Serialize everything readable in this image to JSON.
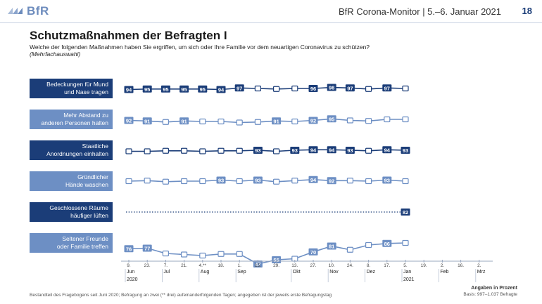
{
  "header": {
    "logo_text": "BfR",
    "title": "BfR Corona-Monitor | 5.–6. Januar 2021",
    "page_number": "18"
  },
  "chart_data": {
    "type": "line",
    "title": "Schutzmaßnahmen der Befragten I",
    "subtitle": "Welche der folgenden Maßnahmen haben Sie ergriffen, um sich oder Ihre Familie vor dem neuartigen Coronavirus zu schützen?",
    "note": "(Mehrfachauswahl)",
    "x_ticks": [
      {
        "day": "9.",
        "month": "Jun",
        "year": "2020"
      },
      {
        "day": "23.",
        "month": "",
        "year": ""
      },
      {
        "day": "7.",
        "month": "Jul",
        "year": ""
      },
      {
        "day": "21.",
        "month": "",
        "year": ""
      },
      {
        "day": "4.**",
        "month": "Aug",
        "year": ""
      },
      {
        "day": "18.",
        "month": "",
        "year": ""
      },
      {
        "day": "1.",
        "month": "Sep",
        "year": ""
      },
      {
        "day": "15.",
        "month": "",
        "year": ""
      },
      {
        "day": "29.",
        "month": "",
        "year": ""
      },
      {
        "day": "13.",
        "month": "Okt",
        "year": ""
      },
      {
        "day": "27.",
        "month": "",
        "year": ""
      },
      {
        "day": "10.",
        "month": "Nov",
        "year": ""
      },
      {
        "day": "24.",
        "month": "",
        "year": ""
      },
      {
        "day": "8.",
        "month": "Dez",
        "year": ""
      },
      {
        "day": "17.",
        "month": "",
        "year": ""
      },
      {
        "day": "5.",
        "month": "Jan",
        "year": "2021"
      },
      {
        "day": "19.",
        "month": "",
        "year": ""
      },
      {
        "day": "2.",
        "month": "Feb",
        "year": ""
      },
      {
        "day": "16.",
        "month": "",
        "year": ""
      },
      {
        "day": "2.",
        "month": "Mrz",
        "year": ""
      }
    ],
    "series": [
      {
        "name_lines": [
          "Bedeckungen für Mund",
          "und Nase tragen"
        ],
        "color": "#1b3d78",
        "values": [
          94,
          95,
          95,
          95,
          95,
          94,
          97,
          96,
          95,
          96,
          96,
          98,
          97,
          95,
          97,
          96
        ],
        "labeled": [
          true,
          true,
          true,
          true,
          true,
          true,
          true,
          false,
          false,
          false,
          true,
          true,
          true,
          false,
          true,
          false
        ]
      },
      {
        "name_lines": [
          "Mehr Abstand zu",
          "anderen Personen halten"
        ],
        "color": "#6d8fc4",
        "values": [
          92,
          91,
          89,
          91,
          90,
          90,
          88,
          89,
          91,
          90,
          92,
          95,
          92,
          91,
          94,
          94
        ],
        "labeled": [
          true,
          true,
          false,
          true,
          false,
          false,
          false,
          false,
          true,
          false,
          true,
          true,
          false,
          false,
          false,
          false
        ]
      },
      {
        "name_lines": [
          "Staatliche",
          "Anordnungen einhalten"
        ],
        "color": "#1b3d78",
        "values": [
          91,
          91,
          92,
          92,
          91,
          92,
          92,
          93,
          91,
          93,
          94,
          94,
          93,
          92,
          94,
          93
        ],
        "labeled": [
          false,
          false,
          false,
          false,
          false,
          false,
          false,
          true,
          false,
          true,
          true,
          true,
          true,
          false,
          true,
          true
        ]
      },
      {
        "name_lines": [
          "Gründlicher",
          "Hände waschen"
        ],
        "color": "#6d8fc4",
        "values": [
          91,
          92,
          90,
          91,
          91,
          93,
          91,
          93,
          90,
          92,
          94,
          92,
          92,
          91,
          93,
          91
        ],
        "labeled": [
          false,
          false,
          false,
          false,
          false,
          true,
          false,
          true,
          false,
          false,
          true,
          true,
          false,
          false,
          true,
          false
        ]
      },
      {
        "name_lines": [
          "Geschlossene Räume",
          "häufiger lüften"
        ],
        "color": "#1b3d78",
        "values": [
          null,
          null,
          null,
          null,
          null,
          null,
          null,
          null,
          null,
          null,
          null,
          null,
          null,
          null,
          null,
          82
        ],
        "labeled": [
          false,
          false,
          false,
          false,
          false,
          false,
          false,
          false,
          false,
          false,
          false,
          false,
          false,
          false,
          false,
          true
        ]
      },
      {
        "name_lines": [
          "Seltener Freunde",
          "oder Familie treffen"
        ],
        "color": "#6d8fc4",
        "values": [
          76,
          77,
          67,
          65,
          63,
          66,
          66,
          47,
          55,
          57,
          70,
          81,
          74,
          83,
          86,
          87
        ],
        "labeled": [
          true,
          true,
          false,
          false,
          false,
          false,
          false,
          true,
          true,
          false,
          true,
          true,
          false,
          false,
          true,
          false
        ]
      }
    ]
  },
  "footer": {
    "method_note": "Bestandteil des Fragebogens seit Juni 2020; Befragung an zwei (** drei) aufeinanderfolgenden Tagen; angegeben ist der jeweils erste Befragungstag",
    "unit_label": "Angaben in Prozent",
    "basis": "Basis: 997–1.037 Befragte"
  }
}
